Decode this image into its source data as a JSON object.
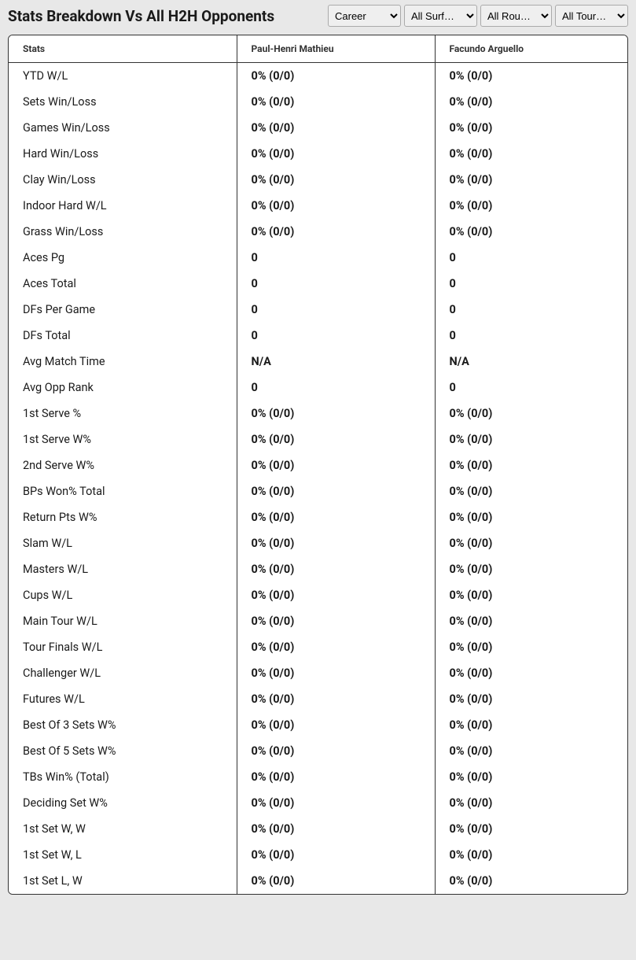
{
  "title": "Stats Breakdown Vs All H2H Opponents",
  "filters": {
    "time": {
      "selected": "Career"
    },
    "surface": {
      "selected": "All Surf…"
    },
    "round": {
      "selected": "All Rou…"
    },
    "tour": {
      "selected": "All Tour…"
    }
  },
  "columns": {
    "stats": "Stats",
    "player1": "Paul-Henri Mathieu",
    "player2": "Facundo Arguello"
  },
  "rows": [
    {
      "label": "YTD W/L",
      "p1": "0% (0/0)",
      "p2": "0% (0/0)"
    },
    {
      "label": "Sets Win/Loss",
      "p1": "0% (0/0)",
      "p2": "0% (0/0)"
    },
    {
      "label": "Games Win/Loss",
      "p1": "0% (0/0)",
      "p2": "0% (0/0)"
    },
    {
      "label": "Hard Win/Loss",
      "p1": "0% (0/0)",
      "p2": "0% (0/0)"
    },
    {
      "label": "Clay Win/Loss",
      "p1": "0% (0/0)",
      "p2": "0% (0/0)"
    },
    {
      "label": "Indoor Hard W/L",
      "p1": "0% (0/0)",
      "p2": "0% (0/0)"
    },
    {
      "label": "Grass Win/Loss",
      "p1": "0% (0/0)",
      "p2": "0% (0/0)"
    },
    {
      "label": "Aces Pg",
      "p1": "0",
      "p2": "0"
    },
    {
      "label": "Aces Total",
      "p1": "0",
      "p2": "0"
    },
    {
      "label": "DFs Per Game",
      "p1": "0",
      "p2": "0"
    },
    {
      "label": "DFs Total",
      "p1": "0",
      "p2": "0"
    },
    {
      "label": "Avg Match Time",
      "p1": "N/A",
      "p2": "N/A"
    },
    {
      "label": "Avg Opp Rank",
      "p1": "0",
      "p2": "0"
    },
    {
      "label": "1st Serve %",
      "p1": "0% (0/0)",
      "p2": "0% (0/0)"
    },
    {
      "label": "1st Serve W%",
      "p1": "0% (0/0)",
      "p2": "0% (0/0)"
    },
    {
      "label": "2nd Serve W%",
      "p1": "0% (0/0)",
      "p2": "0% (0/0)"
    },
    {
      "label": "BPs Won% Total",
      "p1": "0% (0/0)",
      "p2": "0% (0/0)"
    },
    {
      "label": "Return Pts W%",
      "p1": "0% (0/0)",
      "p2": "0% (0/0)"
    },
    {
      "label": "Slam W/L",
      "p1": "0% (0/0)",
      "p2": "0% (0/0)"
    },
    {
      "label": "Masters W/L",
      "p1": "0% (0/0)",
      "p2": "0% (0/0)"
    },
    {
      "label": "Cups W/L",
      "p1": "0% (0/0)",
      "p2": "0% (0/0)"
    },
    {
      "label": "Main Tour W/L",
      "p1": "0% (0/0)",
      "p2": "0% (0/0)"
    },
    {
      "label": "Tour Finals W/L",
      "p1": "0% (0/0)",
      "p2": "0% (0/0)"
    },
    {
      "label": "Challenger W/L",
      "p1": "0% (0/0)",
      "p2": "0% (0/0)"
    },
    {
      "label": "Futures W/L",
      "p1": "0% (0/0)",
      "p2": "0% (0/0)"
    },
    {
      "label": "Best Of 3 Sets W%",
      "p1": "0% (0/0)",
      "p2": "0% (0/0)"
    },
    {
      "label": "Best Of 5 Sets W%",
      "p1": "0% (0/0)",
      "p2": "0% (0/0)"
    },
    {
      "label": "TBs Win% (Total)",
      "p1": "0% (0/0)",
      "p2": "0% (0/0)"
    },
    {
      "label": "Deciding Set W%",
      "p1": "0% (0/0)",
      "p2": "0% (0/0)"
    },
    {
      "label": "1st Set W, W",
      "p1": "0% (0/0)",
      "p2": "0% (0/0)"
    },
    {
      "label": "1st Set W, L",
      "p1": "0% (0/0)",
      "p2": "0% (0/0)"
    },
    {
      "label": "1st Set L, W",
      "p1": "0% (0/0)",
      "p2": "0% (0/0)"
    }
  ]
}
